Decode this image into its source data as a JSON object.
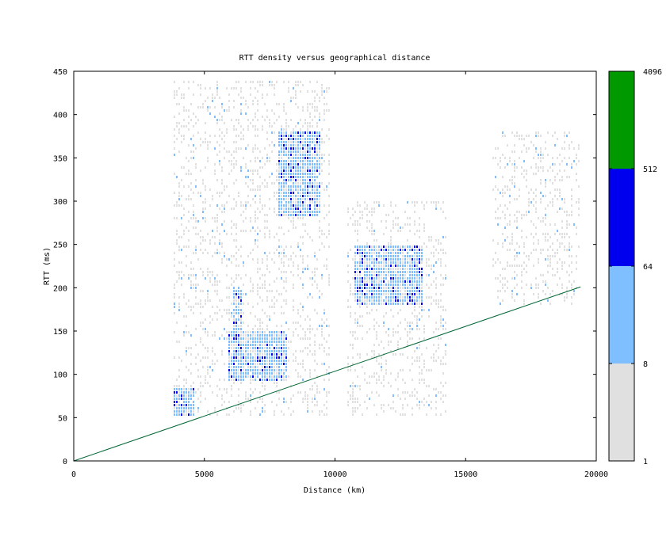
{
  "chart_data": {
    "type": "heatmap",
    "title": "RTT density versus geographical distance",
    "xlabel": "Distance (km)",
    "ylabel": "RTT (ms)",
    "xlim": [
      0,
      20000
    ],
    "ylim": [
      0,
      450
    ],
    "x_ticks": [
      0,
      5000,
      10000,
      15000,
      20000
    ],
    "y_ticks": [
      0,
      50,
      100,
      150,
      200,
      250,
      300,
      350,
      400,
      450
    ],
    "colorbar": {
      "scale": "log",
      "ticks": [
        1,
        8,
        64,
        512,
        4096
      ],
      "bins": [
        {
          "from": 1,
          "to": 8,
          "color": "#e0e0e0"
        },
        {
          "from": 8,
          "to": 64,
          "color": "#80bfff"
        },
        {
          "from": 64,
          "to": 512,
          "color": "#0000ee"
        },
        {
          "from": 512,
          "to": 4096,
          "color": "#009900"
        }
      ]
    },
    "reference_line": {
      "color": "#006633",
      "points": [
        [
          0,
          0
        ],
        [
          19400,
          201
        ]
      ]
    },
    "clusters": [
      {
        "x_range": [
          3800,
          4600
        ],
        "y_range": [
          50,
          85
        ],
        "level": "high"
      },
      {
        "x_range": [
          5900,
          8200
        ],
        "y_range": [
          90,
          150
        ],
        "level": "high"
      },
      {
        "x_range": [
          6100,
          6500
        ],
        "y_range": [
          150,
          200
        ],
        "level": "high"
      },
      {
        "x_range": [
          7800,
          9500
        ],
        "y_range": [
          280,
          380
        ],
        "level": "high"
      },
      {
        "x_range": [
          10700,
          13400
        ],
        "y_range": [
          180,
          250
        ],
        "level": "high"
      },
      {
        "x_range": [
          3800,
          9800
        ],
        "y_range": [
          50,
          440
        ],
        "level": "low"
      },
      {
        "x_range": [
          10500,
          14300
        ],
        "y_range": [
          50,
          300
        ],
        "level": "low"
      },
      {
        "x_range": [
          16000,
          19400
        ],
        "y_range": [
          180,
          380
        ],
        "level": "low"
      }
    ]
  }
}
